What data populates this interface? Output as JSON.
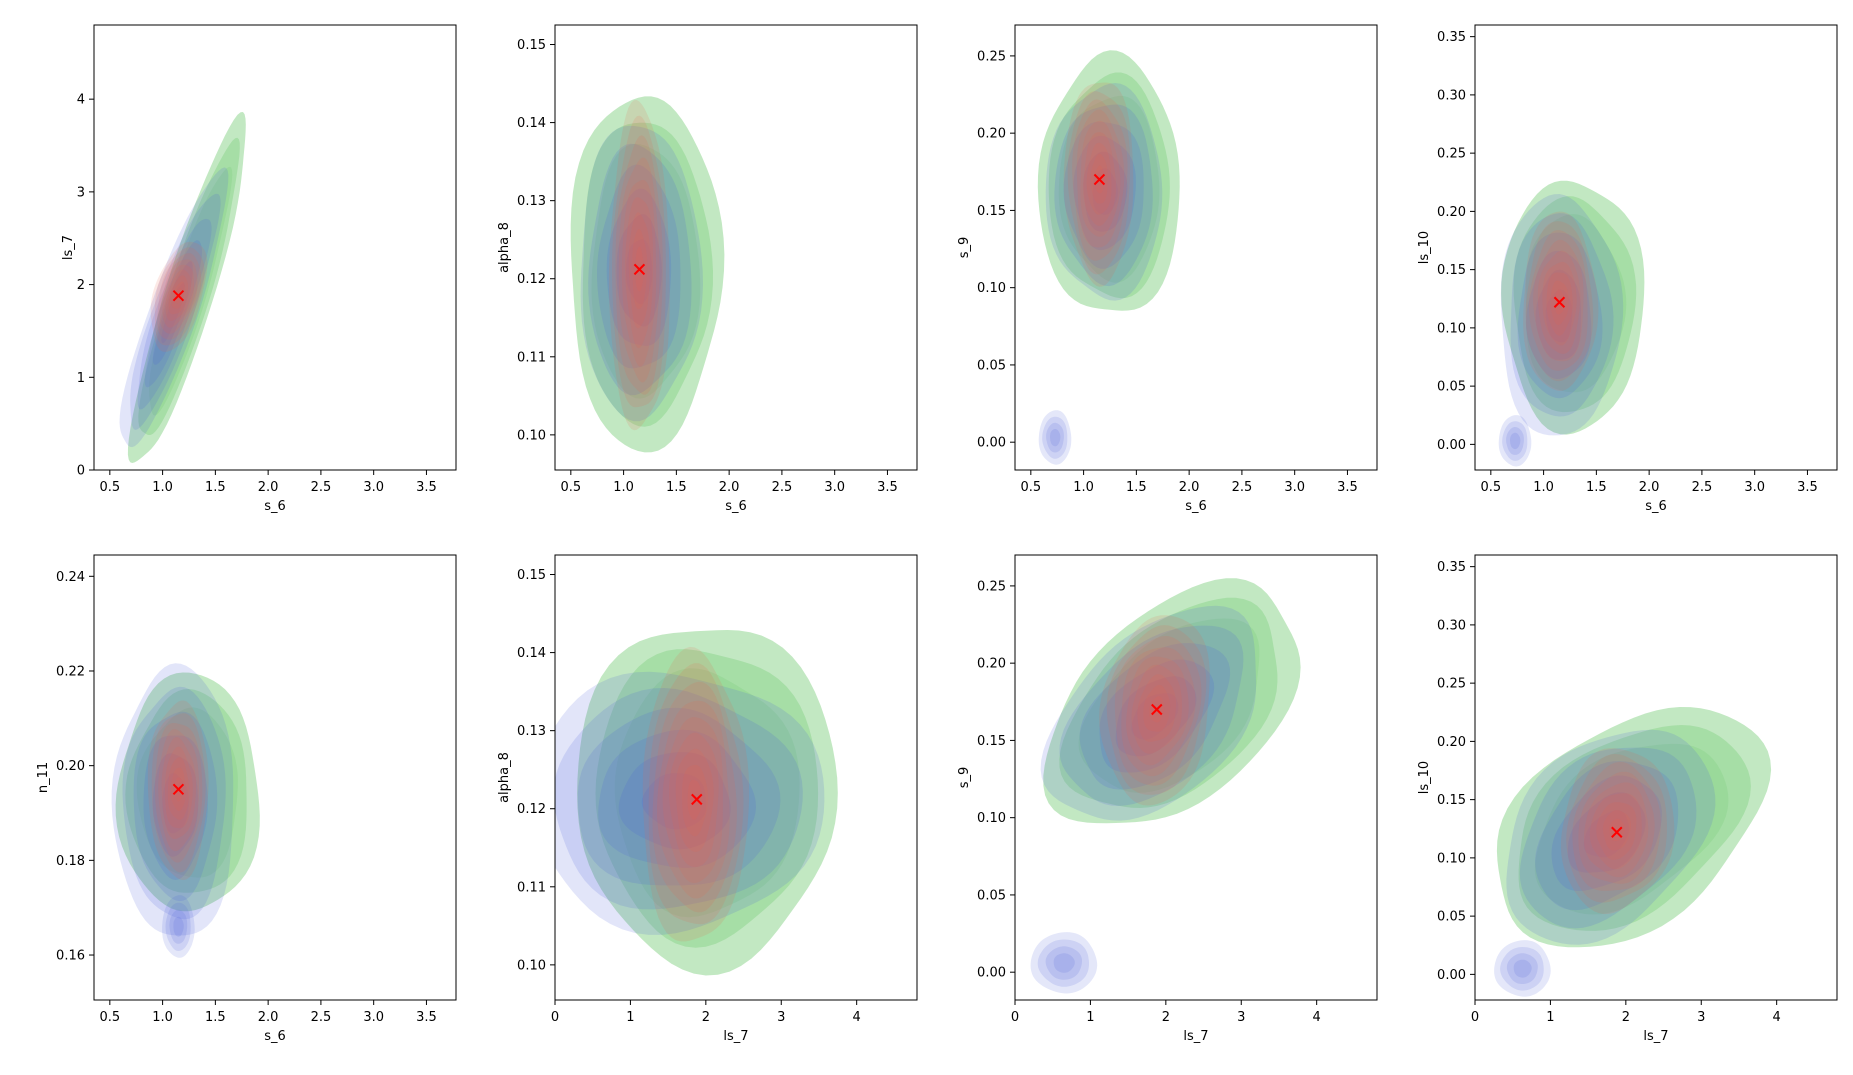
{
  "colors": {
    "green": "#8fd68f",
    "blue": "#4a5fd8",
    "red": "#e8654f",
    "marker": "#ff0000"
  },
  "chart_data": [
    {
      "type": "contour",
      "xlabel": "s_6",
      "ylabel": "ls_7",
      "xlim": [
        0.35,
        3.78
      ],
      "ylim": [
        0,
        4.8
      ],
      "xticks": [
        0.5,
        1.0,
        1.5,
        2.0,
        2.5,
        3.0,
        3.5
      ],
      "yticks": [
        0,
        1,
        2,
        3,
        4
      ],
      "true_value": [
        1.15,
        1.88
      ],
      "layers": [
        {
          "name": "green",
          "center": [
            1.25,
            1.9
          ],
          "spread": [
            0.23,
            0.78
          ],
          "rho": 0.9,
          "levels": 3
        },
        {
          "name": "blue",
          "center": [
            1.1,
            1.7
          ],
          "spread": [
            0.22,
            0.65
          ],
          "rho": 0.88,
          "levels": 6
        },
        {
          "name": "red",
          "center": [
            1.15,
            1.88
          ],
          "spread": [
            0.12,
            0.27
          ],
          "rho": 0.45,
          "levels": 9
        }
      ],
      "extra_blobs": []
    },
    {
      "type": "contour",
      "xlabel": "s_6",
      "ylabel": "alpha_8",
      "xlim": [
        0.35,
        3.78
      ],
      "ylim": [
        0.0955,
        0.1525
      ],
      "xticks": [
        0.5,
        1.0,
        1.5,
        2.0,
        2.5,
        3.0,
        3.5
      ],
      "yticks": [
        0.1,
        0.11,
        0.12,
        0.13,
        0.14,
        0.15
      ],
      "true_value": [
        1.15,
        0.1212
      ],
      "layers": [
        {
          "name": "green",
          "center": [
            1.2,
            0.121
          ],
          "spread": [
            0.3,
            0.0095
          ],
          "rho": 0.0,
          "levels": 3
        },
        {
          "name": "blue",
          "center": [
            1.15,
            0.121
          ],
          "spread": [
            0.25,
            0.0082
          ],
          "rho": 0.0,
          "levels": 6
        },
        {
          "name": "red",
          "center": [
            1.15,
            0.1212
          ],
          "spread": [
            0.13,
            0.0095
          ],
          "rho": 0.0,
          "levels": 9
        }
      ],
      "extra_blobs": []
    },
    {
      "type": "contour",
      "xlabel": "s_6",
      "ylabel": "s_9",
      "xlim": [
        0.35,
        3.78
      ],
      "ylim": [
        -0.018,
        0.27
      ],
      "xticks": [
        0.5,
        1.0,
        1.5,
        2.0,
        2.5,
        3.0,
        3.5
      ],
      "yticks": [
        0.0,
        0.05,
        0.1,
        0.15,
        0.2,
        0.25
      ],
      "true_value": [
        1.15,
        0.17
      ],
      "layers": [
        {
          "name": "green",
          "center": [
            1.25,
            0.165
          ],
          "spread": [
            0.28,
            0.035
          ],
          "rho": 0.0,
          "levels": 3
        },
        {
          "name": "blue",
          "center": [
            1.2,
            0.162
          ],
          "spread": [
            0.24,
            0.03
          ],
          "rho": 0.0,
          "levels": 6
        },
        {
          "name": "red",
          "center": [
            1.15,
            0.17
          ],
          "spread": [
            0.15,
            0.03
          ],
          "rho": 0.0,
          "levels": 9
        }
      ],
      "extra_blobs": [
        {
          "center": [
            0.73,
            0.003
          ],
          "spread": [
            0.07,
            0.008
          ]
        }
      ]
    },
    {
      "type": "contour",
      "xlabel": "s_6",
      "ylabel": "ls_10",
      "xlim": [
        0.35,
        3.78
      ],
      "ylim": [
        -0.022,
        0.36
      ],
      "xticks": [
        0.5,
        1.0,
        1.5,
        2.0,
        2.5,
        3.0,
        3.5
      ],
      "yticks": [
        0.0,
        0.05,
        0.1,
        0.15,
        0.2,
        0.25,
        0.3,
        0.35
      ],
      "true_value": [
        1.15,
        0.122
      ],
      "layers": [
        {
          "name": "green",
          "center": [
            1.28,
            0.12
          ],
          "spread": [
            0.28,
            0.045
          ],
          "rho": 0.0,
          "levels": 3
        },
        {
          "name": "blue",
          "center": [
            1.15,
            0.11
          ],
          "spread": [
            0.25,
            0.045
          ],
          "rho": 0.0,
          "levels": 6
        },
        {
          "name": "red",
          "center": [
            1.15,
            0.122
          ],
          "spread": [
            0.16,
            0.035
          ],
          "rho": 0.0,
          "levels": 9
        }
      ],
      "extra_blobs": [
        {
          "center": [
            0.73,
            0.003
          ],
          "spread": [
            0.07,
            0.01
          ]
        }
      ]
    },
    {
      "type": "contour",
      "xlabel": "s_6",
      "ylabel": "n_11",
      "xlim": [
        0.35,
        3.78
      ],
      "ylim": [
        0.1505,
        0.2445
      ],
      "xticks": [
        0.5,
        1.0,
        1.5,
        2.0,
        2.5,
        3.0,
        3.5
      ],
      "yticks": [
        0.16,
        0.18,
        0.2,
        0.22,
        0.24
      ],
      "true_value": [
        1.15,
        0.195
      ],
      "layers": [
        {
          "name": "green",
          "center": [
            1.25,
            0.194
          ],
          "spread": [
            0.28,
            0.0105
          ],
          "rho": 0.0,
          "levels": 3
        },
        {
          "name": "blue",
          "center": [
            1.12,
            0.192
          ],
          "spread": [
            0.25,
            0.0125
          ],
          "rho": 0.0,
          "levels": 6
        },
        {
          "name": "red",
          "center": [
            1.15,
            0.195
          ],
          "spread": [
            0.13,
            0.0085
          ],
          "rho": 0.0,
          "levels": 9
        }
      ],
      "extra_blobs": [
        {
          "center": [
            1.15,
            0.166
          ],
          "spread": [
            0.07,
            0.003
          ]
        }
      ]
    },
    {
      "type": "contour",
      "xlabel": "ls_7",
      "ylabel": "alpha_8",
      "xlim": [
        0,
        4.8
      ],
      "ylim": [
        0.0955,
        0.1525
      ],
      "xticks": [
        0,
        1,
        2,
        3,
        4
      ],
      "yticks": [
        0.1,
        0.11,
        0.12,
        0.13,
        0.14,
        0.15
      ],
      "true_value": [
        1.88,
        0.1212
      ],
      "layers": [
        {
          "name": "green",
          "center": [
            2.0,
            0.122
          ],
          "spread": [
            0.72,
            0.0092
          ],
          "rho": 0.0,
          "levels": 3
        },
        {
          "name": "blue",
          "center": [
            1.6,
            0.121
          ],
          "spread": [
            0.85,
            0.0072
          ],
          "rho": 0.0,
          "levels": 6
        },
        {
          "name": "red",
          "center": [
            1.85,
            0.1212
          ],
          "spread": [
            0.32,
            0.0085
          ],
          "rho": 0.0,
          "levels": 9
        }
      ],
      "extra_blobs": []
    },
    {
      "type": "contour",
      "xlabel": "ls_7",
      "ylabel": "s_9",
      "xlim": [
        0,
        4.8
      ],
      "ylim": [
        -0.018,
        0.27
      ],
      "xticks": [
        0,
        1,
        2,
        3,
        4
      ],
      "yticks": [
        0.0,
        0.05,
        0.1,
        0.15,
        0.2,
        0.25
      ],
      "true_value": [
        1.88,
        0.17
      ],
      "layers": [
        {
          "name": "green",
          "center": [
            2.1,
            0.172
          ],
          "spread": [
            0.7,
            0.033
          ],
          "rho": 0.45,
          "levels": 3
        },
        {
          "name": "blue",
          "center": [
            1.85,
            0.166
          ],
          "spread": [
            0.62,
            0.03
          ],
          "rho": 0.45,
          "levels": 6
        },
        {
          "name": "red",
          "center": [
            1.88,
            0.17
          ],
          "spread": [
            0.33,
            0.028
          ],
          "rho": 0.15,
          "levels": 9
        }
      ],
      "extra_blobs": [
        {
          "center": [
            0.65,
            0.006
          ],
          "spread": [
            0.2,
            0.009
          ]
        }
      ]
    },
    {
      "type": "contour",
      "xlabel": "ls_7",
      "ylabel": "ls_10",
      "xlim": [
        0,
        4.8
      ],
      "ylim": [
        -0.022,
        0.36
      ],
      "xticks": [
        0,
        1,
        2,
        3,
        4
      ],
      "yticks": [
        0.0,
        0.05,
        0.1,
        0.15,
        0.2,
        0.25,
        0.3,
        0.35
      ],
      "true_value": [
        1.88,
        0.122
      ],
      "layers": [
        {
          "name": "green",
          "center": [
            2.05,
            0.127
          ],
          "spread": [
            0.75,
            0.043
          ],
          "rho": 0.4,
          "levels": 3
        },
        {
          "name": "blue",
          "center": [
            1.75,
            0.12
          ],
          "spread": [
            0.6,
            0.04
          ],
          "rho": 0.35,
          "levels": 6
        },
        {
          "name": "red",
          "center": [
            1.88,
            0.124
          ],
          "spread": [
            0.34,
            0.032
          ],
          "rho": 0.1,
          "levels": 9
        }
      ],
      "extra_blobs": [
        {
          "center": [
            0.63,
            0.005
          ],
          "spread": [
            0.17,
            0.011
          ]
        }
      ]
    }
  ]
}
